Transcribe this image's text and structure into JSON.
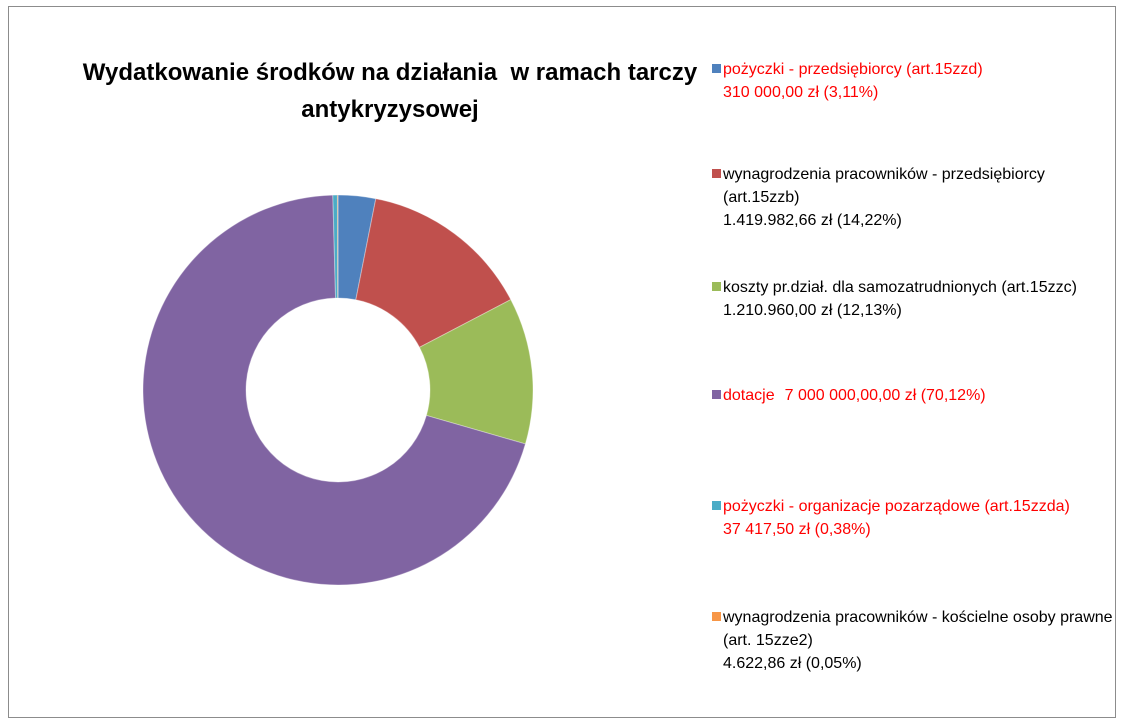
{
  "chart_data": {
    "type": "donut",
    "title": "Wydatkowanie środków na działania  w ramach tarczy antykryzysowej",
    "categories": [
      "pożyczki - przedsiębiorcy (art.15zzd)",
      "wynagrodzenia pracowników - przedsiębiorcy (art.15zzb)",
      "koszty pr.dział. dla samozatrudnionych (art.15zzc)",
      "dotacje",
      "pożyczki - organizacje pozarządowe (art.15zzda)",
      "wynagrodzenia pracowników - kościelne osoby prawne (art. 15zze2)"
    ],
    "values": [
      310000,
      1419982.66,
      1210960,
      7000000,
      37417.5,
      4622.86
    ],
    "value_labels": [
      "310 000,00 zł (3,11%)",
      "1.419.982,66 zł (14,22%)",
      "1.210.960,00 zł (12,13%)",
      "7 000 000,00,00 zł (70,12%)",
      "37 417,50 zł (0,38%)",
      "4.622,86 zł (0,05%)"
    ],
    "colors": [
      "#4f81bd",
      "#c0504d",
      "#9bbb59",
      "#8064a2",
      "#4bacc6",
      "#f79646"
    ],
    "legend_text_colors": [
      "#ff0000",
      "#000000",
      "#000000",
      "#ff0000",
      "#ff0000",
      "#000000"
    ],
    "legend": "right"
  }
}
